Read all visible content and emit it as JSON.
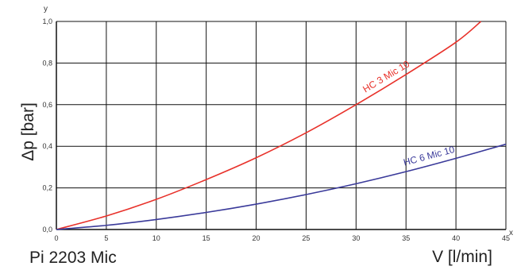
{
  "chart_data": {
    "type": "line",
    "title": "Pi 2203 Mic",
    "xlabel": "V [l/min]",
    "ylabel": "Δp [bar]",
    "x_axis_letter": "x",
    "y_axis_letter": "y",
    "xlim": [
      0,
      45
    ],
    "ylim": [
      0,
      1.0
    ],
    "x_ticks": [
      0,
      5,
      10,
      15,
      20,
      25,
      30,
      35,
      40,
      45
    ],
    "x_tick_labels": [
      "0",
      "5",
      "10",
      "15",
      "20",
      "25",
      "30",
      "35",
      "40",
      "45"
    ],
    "y_ticks": [
      0,
      0.2,
      0.4,
      0.6,
      0.8,
      1.0
    ],
    "y_tick_labels": [
      "0,0",
      "0,2",
      "0,4",
      "0,6",
      "0,8",
      "1,0"
    ],
    "grid": true,
    "series": [
      {
        "name": "HC 3 Mic 10",
        "color": "#e8312a",
        "x": [
          0,
          5,
          10,
          15,
          20,
          25,
          30,
          35,
          40,
          42.5
        ],
        "y": [
          0,
          0.065,
          0.145,
          0.24,
          0.345,
          0.465,
          0.6,
          0.745,
          0.9,
          1.0
        ]
      },
      {
        "name": "HC 6 Mic 10",
        "color": "#3a3a9a",
        "x": [
          0,
          5,
          10,
          15,
          20,
          25,
          30,
          35,
          40,
          45
        ],
        "y": [
          0,
          0.02,
          0.048,
          0.082,
          0.122,
          0.168,
          0.22,
          0.278,
          0.342,
          0.41
        ]
      }
    ]
  }
}
